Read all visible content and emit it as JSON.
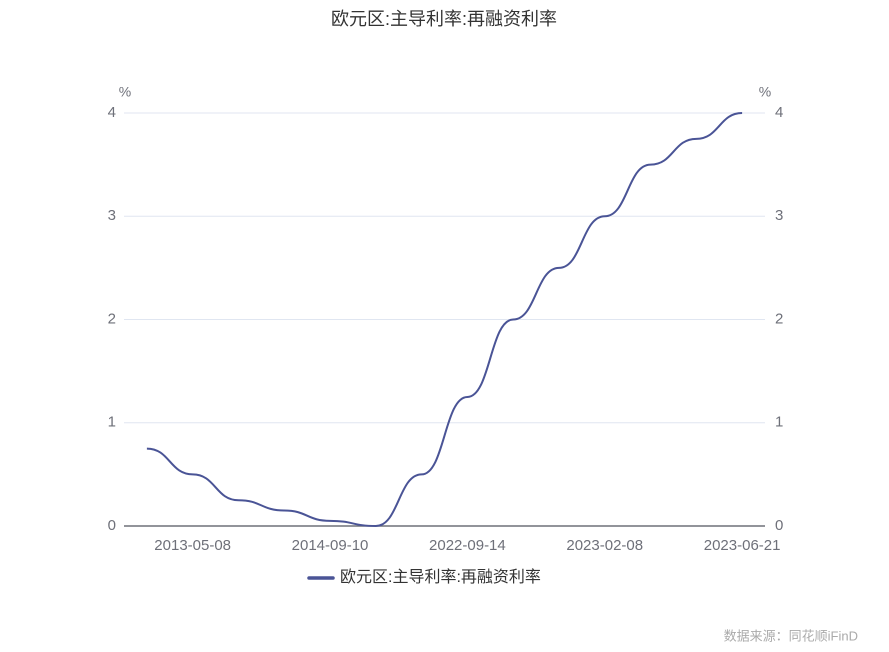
{
  "chart_data": {
    "type": "line",
    "title": "欧元区:主导利率:再融资利率",
    "categories": [
      null,
      "2013-05-08",
      null,
      null,
      "2014-09-10",
      null,
      null,
      "2022-09-14",
      null,
      null,
      "2023-02-08",
      null,
      null,
      "2023-06-21"
    ],
    "series": [
      {
        "name": "欧元区:主导利率:再融资利率",
        "color": "#4a5496",
        "values": [
          0.75,
          0.5,
          0.25,
          0.15,
          0.05,
          0,
          0.5,
          1.25,
          2,
          2.5,
          3,
          3.5,
          3.75,
          4
        ]
      }
    ],
    "ylim": [
      0,
      4
    ],
    "yticks": [
      0,
      1,
      2,
      3,
      4
    ],
    "y_unit": "%",
    "y2lim": [
      0,
      4
    ],
    "y2ticks": [
      0,
      1,
      2,
      3,
      4
    ],
    "y2_unit": "%",
    "grid": true,
    "legend": "bottom",
    "source": "数据来源：同花顺iFinD"
  }
}
